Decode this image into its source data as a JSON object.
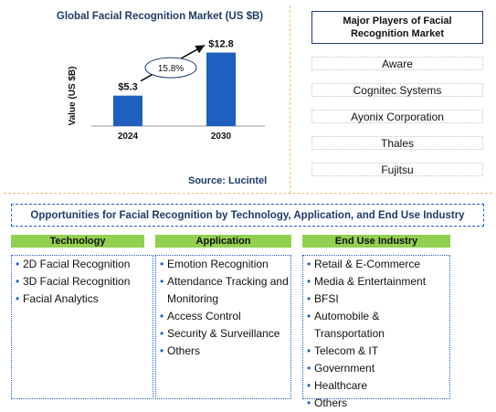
{
  "chart_data": {
    "type": "bar",
    "title": "Global Facial Recognition Market (US $B)",
    "ylabel": "Value (US $B)",
    "categories": [
      "2024",
      "2030"
    ],
    "values": [
      5.3,
      12.8
    ],
    "value_labels": [
      "$5.3",
      "$12.8"
    ],
    "cagr_label": "15.8%",
    "ylim": [
      0,
      14
    ],
    "bar_color": "#1f5fbf",
    "source": "Source: Lucintel"
  },
  "players": {
    "header": "Major Players of Facial Recognition Market",
    "items": [
      "Aware",
      "Cognitec Systems",
      "Ayonix Corporation",
      "Thales",
      "Fujitsu"
    ]
  },
  "opportunities": {
    "title": "Opportunities for Facial Recognition by Technology, Application, and End Use Industry",
    "technology": {
      "header": "Technology",
      "items": [
        "2D Facial Recognition",
        "3D Facial Recognition",
        "Facial Analytics"
      ]
    },
    "application": {
      "header": "Application",
      "items": [
        "Emotion Recognition",
        "Attendance Tracking and Monitoring",
        "Access Control",
        "Security & Surveillance",
        "Others"
      ]
    },
    "end_use": {
      "header": "End Use Industry",
      "items": [
        "Retail & E-Commerce",
        "Media & Entertainment",
        "BFSI",
        "Automobile & Transportation",
        "Telecom & IT",
        "Government",
        "Healthcare",
        "Others"
      ]
    }
  },
  "colors": {
    "accent_green": "#92d050",
    "accent_blue": "#1f5fbf",
    "title_navy": "#1f3b6b"
  }
}
